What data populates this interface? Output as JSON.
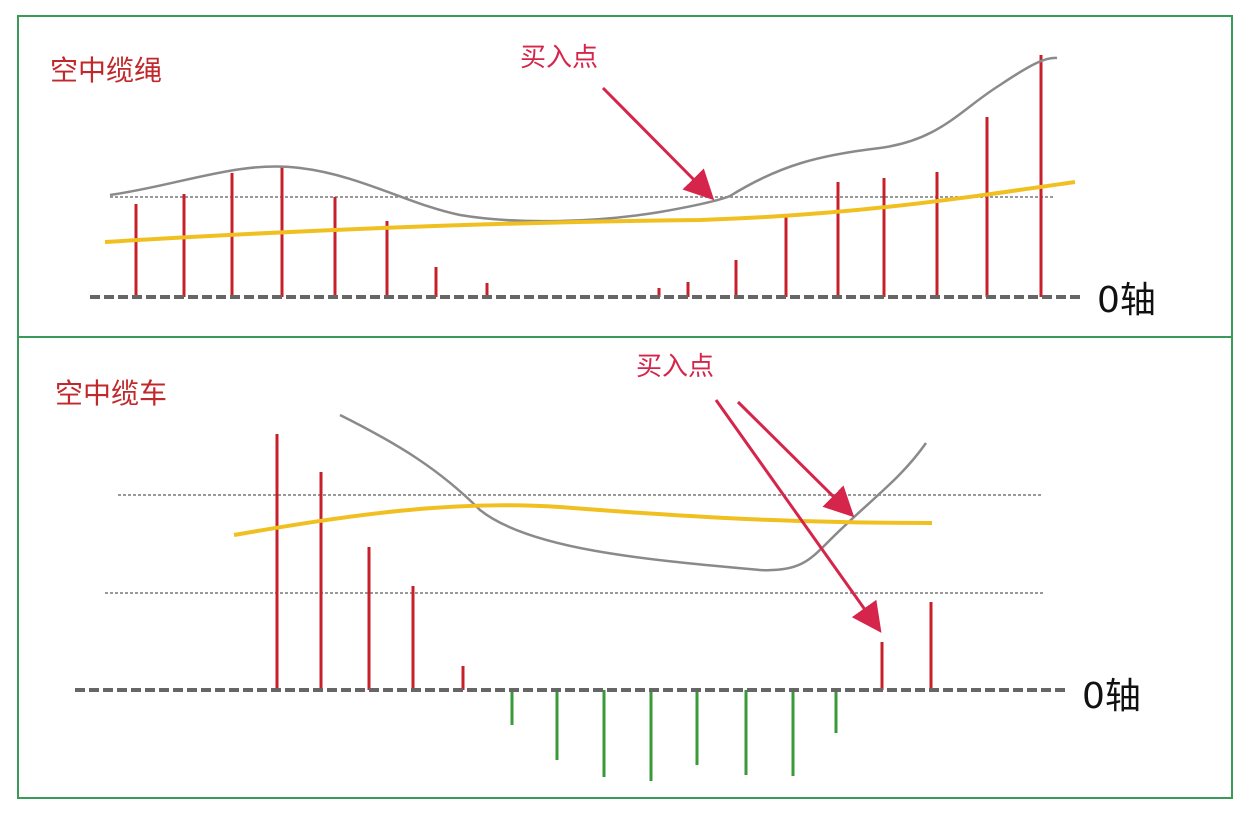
{
  "panels": [
    {
      "title": "空中缆绳",
      "annotation": "买入点",
      "axis_label": "0轴"
    },
    {
      "title": "空中缆车",
      "annotation": "买入点",
      "axis_label": "0轴"
    }
  ]
}
